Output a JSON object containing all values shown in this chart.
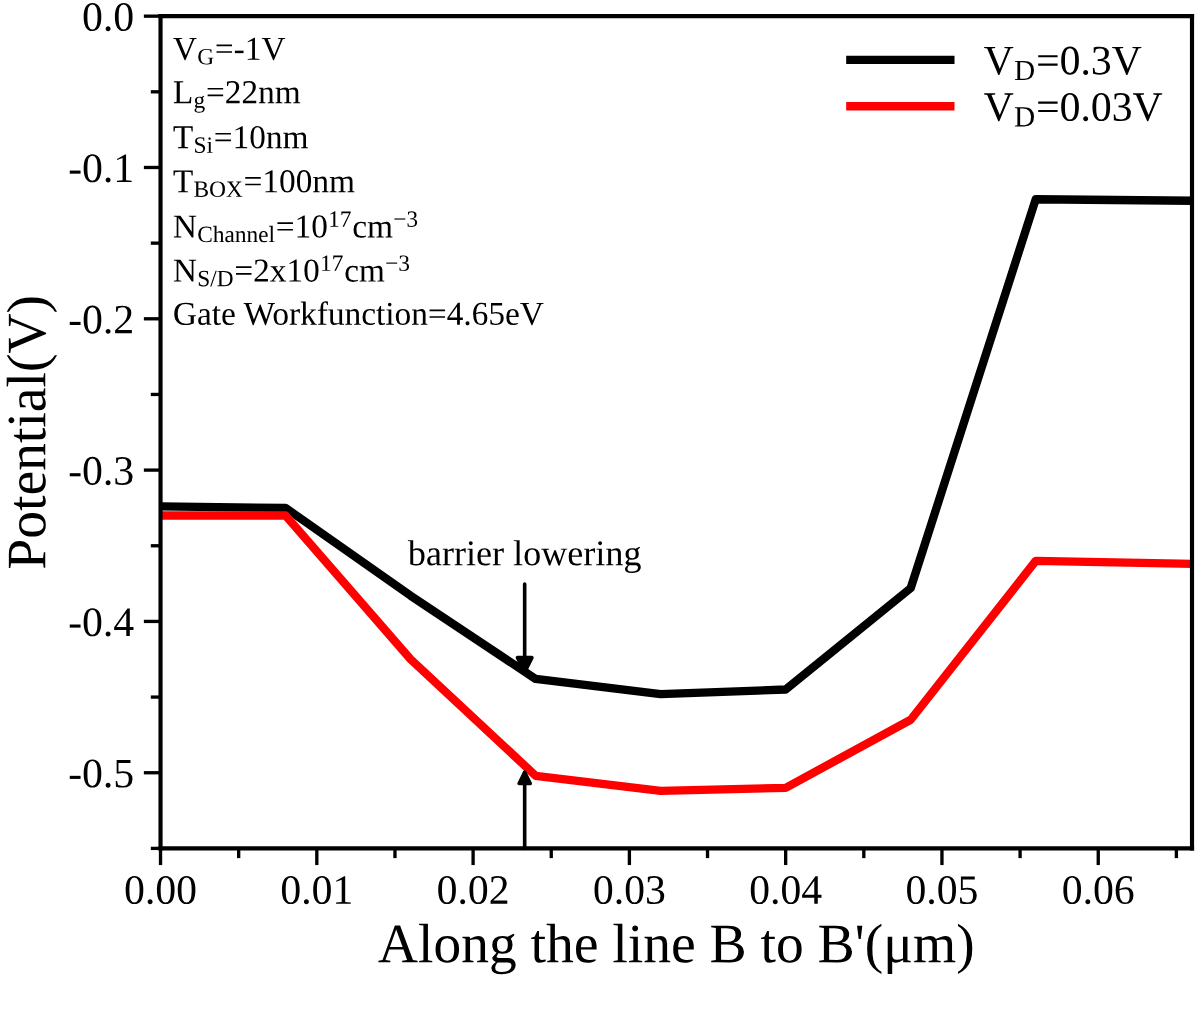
{
  "chart_data": {
    "type": "line",
    "xlabel": "Along the line B to B'(μm)",
    "ylabel": "Potential(V)",
    "x": [
      0.0,
      0.008,
      0.016,
      0.024,
      0.032,
      0.04,
      0.048,
      0.056,
      0.066
    ],
    "series": [
      {
        "name": "V$_{D}$=0.3V",
        "color": "#000000",
        "values": [
          -0.324,
          -0.325,
          -0.383,
          -0.438,
          -0.448,
          -0.445,
          -0.378,
          -0.121,
          -0.122
        ]
      },
      {
        "name": "V$_{D}$=0.03V",
        "color": "#ff0000",
        "values": [
          -0.33,
          -0.33,
          -0.425,
          -0.502,
          -0.512,
          -0.51,
          -0.465,
          -0.36,
          -0.362
        ]
      }
    ],
    "xlim": [
      0.0,
      0.066
    ],
    "ylim": [
      -0.55,
      0.0
    ],
    "xticks": [
      {
        "value": 0.0,
        "label": "0.00"
      },
      0.01,
      0.02,
      0.03,
      0.04,
      0.05,
      0.06
    ],
    "yticks": [
      {
        "value": -0.5,
        "label": "-0.5"
      },
      {
        "value": -0.4,
        "label": "-0.4"
      },
      {
        "value": -0.3,
        "label": "-0.3"
      },
      {
        "value": -0.2,
        "label": "-0.2"
      },
      {
        "value": -0.1,
        "label": "-0.1"
      },
      {
        "value": 0.0,
        "label": "0.0"
      }
    ],
    "annotations": [
      {
        "text": "barrier lowering",
        "x": 0.0233,
        "y": -0.438
      },
      "V$_{G}$=-1V",
      "L$_{g}$=22nm",
      "T$_{Si}$=10nm",
      "T$_{BOX}$=100nm",
      "N$_{Channel}$=10$^{17}$cm$^{−3}$",
      "N$_{S/D}$=2x10$^{17}$cm$^{−3}$",
      "Gate Workfunction=4.65eV"
    ],
    "legend": "top right",
    "grid": false,
    "marker": "none",
    "line_style": "solid"
  }
}
